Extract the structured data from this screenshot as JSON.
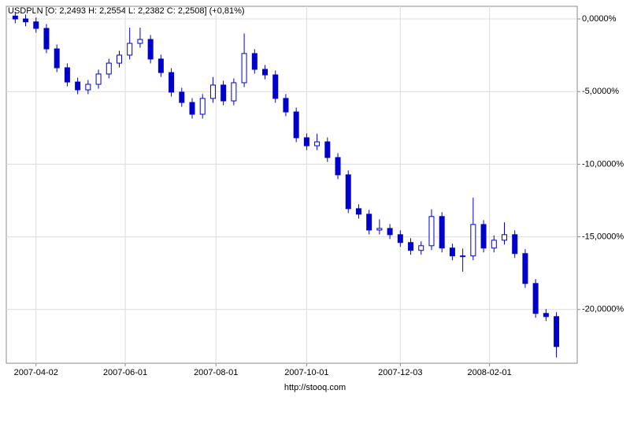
{
  "chart_data": {
    "type": "candlestick",
    "title": "USDPLN [O: 2,2493  H: 2,2554  L: 2,2382  C: 2,2508] (+0,81%)",
    "footer": "http://stooq.com",
    "color": "#0000cc",
    "grid": true,
    "x": [
      "2007-03-19",
      "2007-03-26",
      "2007-04-02",
      "2007-04-09",
      "2007-04-16",
      "2007-04-23",
      "2007-04-30",
      "2007-05-07",
      "2007-05-14",
      "2007-05-21",
      "2007-05-28",
      "2007-06-04",
      "2007-06-11",
      "2007-06-18",
      "2007-06-25",
      "2007-07-02",
      "2007-07-09",
      "2007-07-16",
      "2007-07-23",
      "2007-07-30",
      "2007-08-06",
      "2007-08-13",
      "2007-08-20",
      "2007-08-27",
      "2007-09-03",
      "2007-09-10",
      "2007-09-17",
      "2007-09-24",
      "2007-10-01",
      "2007-10-08",
      "2007-10-15",
      "2007-10-22",
      "2007-10-29",
      "2007-11-05",
      "2007-11-12",
      "2007-11-19",
      "2007-11-26",
      "2007-12-03",
      "2007-12-10",
      "2007-12-17",
      "2007-12-24",
      "2007-12-31",
      "2008-01-07",
      "2008-01-14",
      "2008-01-21",
      "2008-01-28",
      "2008-02-04",
      "2008-02-11",
      "2008-02-18",
      "2008-02-25",
      "2008-03-03",
      "2008-03-10",
      "2008-03-17"
    ],
    "open": [
      0.2,
      0.0,
      -0.2,
      -0.65,
      -2.06,
      -3.36,
      -4.34,
      -4.88,
      -4.5,
      -3.79,
      -3.04,
      -2.49,
      -1.68,
      -1.41,
      -2.76,
      -3.69,
      -5.04,
      -5.75,
      -6.56,
      -5.47,
      -4.55,
      -5.64,
      -4.39,
      -2.38,
      -3.47,
      -3.85,
      -5.47,
      -6.4,
      -8.18,
      -8.73,
      -8.46,
      -9.54,
      -10.73,
      -13.06,
      -13.44,
      -14.53,
      -14.42,
      -14.85,
      -15.39,
      -15.93,
      -15.61,
      -13.6,
      -15.77,
      -16.31,
      -16.31,
      -14.15,
      -15.77,
      -15.23,
      -14.85,
      -16.15,
      -18.21,
      -20.27,
      -20.49
    ],
    "high": [
      0.5,
      0.3,
      0.1,
      -0.35,
      -1.76,
      -3.06,
      -4.04,
      -4.2,
      -3.49,
      -2.74,
      -2.19,
      -0.6,
      -0.6,
      -1.11,
      -2.46,
      -3.39,
      -4.74,
      -5.45,
      -5.17,
      -4.0,
      -4.25,
      -4.09,
      -1.0,
      -2.08,
      -3.17,
      -3.55,
      -5.17,
      -6.1,
      -7.88,
      -7.9,
      -8.16,
      -9.24,
      -10.43,
      -12.76,
      -13.14,
      -13.8,
      -14.12,
      -14.55,
      -15.09,
      -15.31,
      -13.1,
      -13.3,
      -15.47,
      -15.8,
      -12.3,
      -13.85,
      -14.9,
      -14.0,
      -14.55,
      -15.85,
      -17.91,
      -19.97,
      -20.19
    ],
    "low": [
      -0.3,
      -0.5,
      -0.95,
      -2.36,
      -3.66,
      -4.64,
      -5.18,
      -5.18,
      -4.8,
      -4.09,
      -3.34,
      -2.79,
      -1.98,
      -3.06,
      -3.99,
      -5.34,
      -6.05,
      -6.86,
      -6.86,
      -5.77,
      -5.94,
      -5.94,
      -4.69,
      -3.77,
      -4.15,
      -5.77,
      -6.7,
      -8.48,
      -9.03,
      -9.03,
      -9.84,
      -11.03,
      -13.36,
      -13.74,
      -14.83,
      -14.83,
      -15.15,
      -15.69,
      -16.23,
      -16.23,
      -15.91,
      -16.07,
      -16.61,
      -17.4,
      -16.61,
      -16.07,
      -16.07,
      -15.53,
      -16.45,
      -18.51,
      -20.57,
      -20.79,
      -23.3
    ],
    "close": [
      0.0,
      -0.2,
      -0.65,
      -2.06,
      -3.36,
      -4.34,
      -4.88,
      -4.5,
      -3.79,
      -3.04,
      -2.49,
      -1.68,
      -1.41,
      -2.76,
      -3.69,
      -5.04,
      -5.75,
      -6.56,
      -5.47,
      -4.55,
      -5.64,
      -4.39,
      -2.38,
      -3.47,
      -3.85,
      -5.47,
      -6.4,
      -8.18,
      -8.73,
      -8.46,
      -9.54,
      -10.73,
      -13.06,
      -13.44,
      -14.53,
      -14.42,
      -14.85,
      -15.39,
      -15.93,
      -15.61,
      -13.6,
      -15.77,
      -16.31,
      -16.31,
      -14.15,
      -15.77,
      -15.23,
      -14.85,
      -16.15,
      -18.21,
      -20.27,
      -20.49,
      -22.55
    ],
    "xlim": [
      "2007-03-13",
      "2008-03-31"
    ],
    "xticks": [
      "2007-04-02",
      "2007-06-01",
      "2007-08-01",
      "2007-10-01",
      "2007-12-03",
      "2008-02-01"
    ],
    "ylim": [
      -23.7,
      0.87
    ],
    "yticks": [
      {
        "value": 0,
        "label": "0,0000%"
      },
      {
        "value": -5,
        "label": "-5,0000%"
      },
      {
        "value": -10,
        "label": "-10,0000%"
      },
      {
        "value": -15,
        "label": "-15,0000%"
      },
      {
        "value": -20,
        "label": "-20,0000%"
      }
    ]
  }
}
